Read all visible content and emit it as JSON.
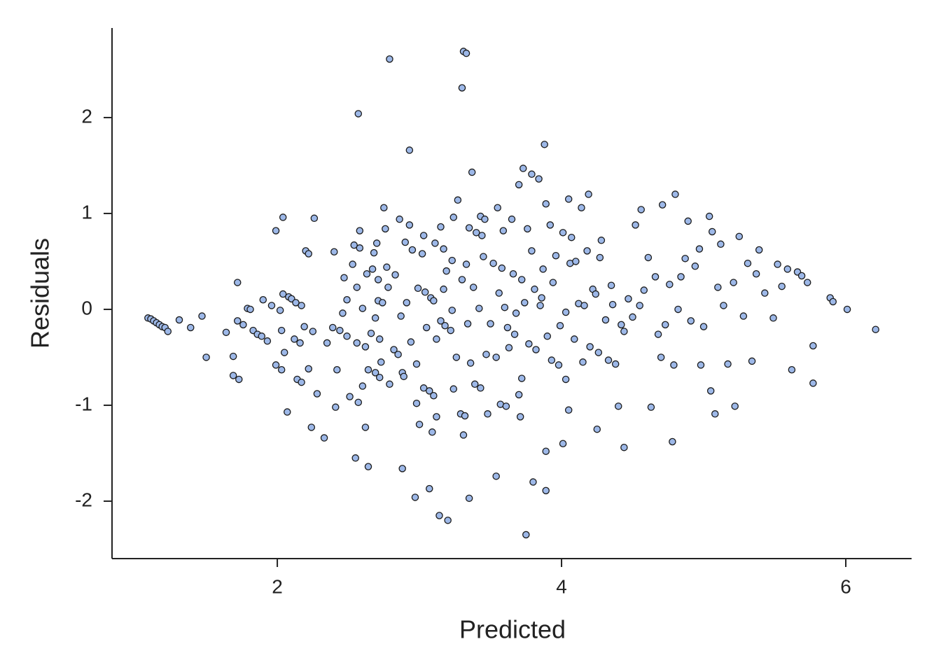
{
  "chart_data": {
    "type": "scatter",
    "x_label": "Predicted",
    "y_label": "Residuals",
    "xlim": [
      0.837,
      6.463
    ],
    "ylim": [
      -2.599,
      2.934
    ],
    "xticks": [
      2,
      4,
      6
    ],
    "yticks": [
      -2,
      -1,
      0,
      1,
      2
    ],
    "color": "#9db8e8",
    "edge_color": "#1a1a1a",
    "series": [
      {
        "name": "Residuals",
        "x": [
          1.09,
          1.11,
          1.13,
          1.15,
          1.17,
          1.19,
          1.21,
          1.23,
          1.31,
          1.39,
          1.47,
          1.5,
          1.64,
          1.69,
          1.69,
          1.72,
          1.72,
          1.73,
          1.76,
          1.79,
          1.81,
          1.83,
          1.86,
          1.89,
          1.9,
          1.93,
          1.96,
          1.99,
          1.99,
          2.02,
          2.03,
          2.03,
          2.04,
          2.04,
          2.05,
          2.07,
          2.08,
          2.1,
          2.12,
          2.13,
          2.14,
          2.16,
          2.17,
          2.17,
          2.19,
          2.2,
          2.22,
          2.22,
          2.24,
          2.25,
          2.26,
          2.28,
          2.33,
          2.35,
          2.39,
          2.4,
          2.41,
          2.42,
          2.44,
          2.46,
          2.47,
          2.49,
          2.49,
          2.51,
          2.53,
          2.54,
          2.55,
          2.56,
          2.56,
          2.57,
          2.57,
          2.58,
          2.58,
          2.6,
          2.6,
          2.62,
          2.62,
          2.63,
          2.64,
          2.64,
          2.66,
          2.67,
          2.68,
          2.69,
          2.69,
          2.7,
          2.71,
          2.71,
          2.72,
          2.72,
          2.73,
          2.74,
          2.75,
          2.76,
          2.77,
          2.78,
          2.79,
          2.79,
          2.82,
          2.83,
          2.85,
          2.86,
          2.87,
          2.88,
          2.88,
          2.89,
          2.9,
          2.91,
          2.93,
          2.93,
          2.94,
          2.95,
          2.97,
          2.98,
          2.98,
          2.99,
          3.0,
          3.02,
          3.03,
          3.03,
          3.04,
          3.05,
          3.07,
          3.07,
          3.08,
          3.09,
          3.1,
          3.1,
          3.11,
          3.12,
          3.12,
          3.14,
          3.15,
          3.15,
          3.17,
          3.17,
          3.18,
          3.19,
          3.2,
          3.22,
          3.23,
          3.23,
          3.24,
          3.24,
          3.26,
          3.27,
          3.29,
          3.3,
          3.3,
          3.31,
          3.31,
          3.32,
          3.33,
          3.33,
          3.34,
          3.35,
          3.35,
          3.36,
          3.37,
          3.38,
          3.39,
          3.4,
          3.42,
          3.43,
          3.43,
          3.44,
          3.45,
          3.46,
          3.47,
          3.48,
          3.5,
          3.52,
          3.54,
          3.54,
          3.55,
          3.56,
          3.57,
          3.58,
          3.59,
          3.6,
          3.61,
          3.62,
          3.63,
          3.65,
          3.66,
          3.67,
          3.68,
          3.7,
          3.7,
          3.71,
          3.72,
          3.72,
          3.73,
          3.74,
          3.75,
          3.76,
          3.77,
          3.79,
          3.79,
          3.8,
          3.81,
          3.82,
          3.84,
          3.85,
          3.86,
          3.87,
          3.88,
          3.89,
          3.89,
          3.89,
          3.9,
          3.92,
          3.93,
          3.94,
          3.96,
          3.98,
          3.99,
          4.01,
          4.01,
          4.03,
          4.03,
          4.05,
          4.05,
          4.06,
          4.07,
          4.09,
          4.1,
          4.12,
          4.14,
          4.15,
          4.16,
          4.18,
          4.19,
          4.2,
          4.22,
          4.24,
          4.25,
          4.26,
          4.27,
          4.28,
          4.31,
          4.33,
          4.35,
          4.36,
          4.38,
          4.4,
          4.42,
          4.44,
          4.44,
          4.47,
          4.5,
          4.52,
          4.55,
          4.56,
          4.58,
          4.61,
          4.63,
          4.66,
          4.68,
          4.7,
          4.71,
          4.73,
          4.76,
          4.78,
          4.79,
          4.8,
          4.82,
          4.84,
          4.87,
          4.89,
          4.91,
          4.94,
          4.97,
          4.98,
          5.0,
          5.04,
          5.05,
          5.06,
          5.08,
          5.1,
          5.12,
          5.14,
          5.17,
          5.21,
          5.22,
          5.25,
          5.28,
          5.31,
          5.34,
          5.37,
          5.39,
          5.43,
          5.49,
          5.52,
          5.55,
          5.59,
          5.62,
          5.66,
          5.69,
          5.73,
          5.77,
          5.77,
          5.89,
          5.91,
          6.01,
          6.21
        ],
        "values": [
          -0.09,
          -0.1,
          -0.12,
          -0.14,
          -0.16,
          -0.18,
          -0.19,
          -0.23,
          -0.11,
          -0.19,
          -0.07,
          -0.5,
          -0.24,
          -0.49,
          -0.69,
          0.28,
          -0.12,
          -0.73,
          -0.16,
          0.01,
          0.0,
          -0.22,
          -0.26,
          -0.28,
          0.1,
          -0.33,
          0.04,
          0.82,
          -0.58,
          -0.01,
          -0.22,
          -0.63,
          0.96,
          0.16,
          -0.45,
          -1.07,
          0.13,
          0.11,
          -0.31,
          0.07,
          -0.73,
          -0.35,
          -0.76,
          0.04,
          -0.18,
          0.61,
          0.58,
          -0.62,
          -1.23,
          -0.23,
          0.95,
          -0.88,
          -1.34,
          -0.35,
          -0.19,
          0.6,
          -1.02,
          -0.63,
          -0.22,
          -0.04,
          0.33,
          0.1,
          -0.28,
          -0.91,
          0.47,
          0.67,
          -1.55,
          -0.35,
          0.23,
          2.04,
          -0.97,
          0.64,
          0.82,
          0.01,
          -0.8,
          -0.39,
          -1.23,
          0.37,
          -0.63,
          -1.64,
          -0.25,
          0.42,
          0.59,
          -0.09,
          -0.66,
          0.69,
          0.31,
          0.09,
          -0.31,
          -0.71,
          -0.55,
          0.07,
          1.06,
          0.84,
          0.44,
          0.23,
          2.61,
          -0.78,
          -0.42,
          0.36,
          -0.47,
          0.94,
          -0.07,
          -0.66,
          -1.66,
          -0.7,
          0.7,
          0.07,
          1.66,
          0.88,
          -0.34,
          0.62,
          -1.96,
          -0.98,
          -0.57,
          0.22,
          -1.2,
          0.58,
          -0.82,
          0.77,
          0.18,
          -0.19,
          -0.85,
          -1.87,
          0.12,
          -1.28,
          0.09,
          -0.9,
          0.69,
          -1.12,
          -0.31,
          -2.15,
          -0.12,
          0.86,
          0.63,
          0.21,
          -0.17,
          0.4,
          -2.2,
          -0.22,
          0.51,
          -0.01,
          0.96,
          -0.83,
          -0.5,
          1.14,
          -1.09,
          2.31,
          0.31,
          2.69,
          -1.31,
          -1.11,
          0.47,
          2.67,
          -0.15,
          0.85,
          -1.97,
          -0.56,
          1.43,
          0.23,
          -0.78,
          0.8,
          0.01,
          0.97,
          -0.82,
          0.77,
          0.55,
          0.94,
          -0.47,
          -1.09,
          -0.15,
          0.48,
          -0.5,
          -1.74,
          1.06,
          0.17,
          -0.99,
          0.43,
          0.82,
          0.02,
          -1.01,
          -0.19,
          -0.4,
          0.94,
          0.37,
          -0.26,
          -0.04,
          -0.89,
          1.3,
          -1.12,
          0.31,
          -0.72,
          1.47,
          0.07,
          -2.35,
          0.84,
          -0.36,
          0.61,
          1.41,
          -1.8,
          0.21,
          -0.42,
          1.36,
          0.04,
          0.12,
          0.42,
          1.72,
          -1.48,
          1.1,
          -1.89,
          -0.28,
          0.88,
          -0.53,
          0.28,
          0.56,
          -0.58,
          -0.17,
          -1.4,
          0.8,
          -0.73,
          -0.03,
          1.15,
          -1.05,
          0.48,
          0.75,
          -0.31,
          0.5,
          0.06,
          1.06,
          -0.55,
          0.04,
          0.61,
          1.2,
          -0.39,
          0.21,
          0.16,
          -1.25,
          -0.45,
          0.54,
          0.72,
          -0.11,
          -0.53,
          0.25,
          0.05,
          -0.57,
          -1.01,
          -0.16,
          -0.23,
          -1.44,
          0.11,
          -0.08,
          0.88,
          0.04,
          1.04,
          0.2,
          0.54,
          -1.02,
          0.34,
          -0.26,
          -0.5,
          1.09,
          -0.16,
          0.26,
          -1.38,
          -0.58,
          1.2,
          0.0,
          0.34,
          0.53,
          0.92,
          -0.12,
          0.45,
          0.63,
          -0.58,
          -0.18,
          0.97,
          -0.85,
          0.81,
          -1.09,
          0.23,
          0.68,
          0.04,
          -0.57,
          0.28,
          -1.01,
          0.76,
          -0.07,
          0.48,
          -0.54,
          0.37,
          0.62,
          0.17,
          -0.09,
          0.47,
          0.24,
          0.42,
          -0.63,
          0.39,
          0.35,
          0.28,
          -0.38,
          -0.77,
          0.12,
          0.08,
          0.0,
          -0.21
        ]
      }
    ]
  }
}
